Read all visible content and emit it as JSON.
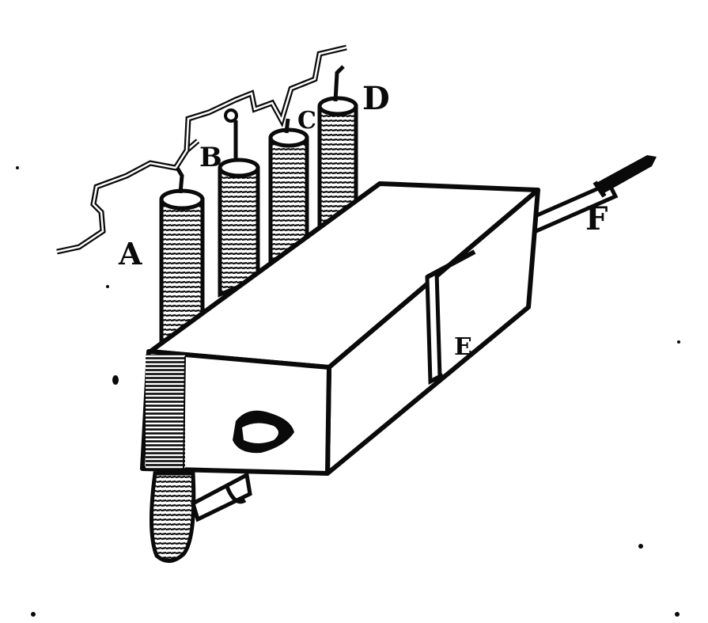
{
  "labels": {
    "a": "A",
    "b": "B",
    "c": "C",
    "d": "D",
    "e": "E",
    "f": "F"
  },
  "colors": {
    "ink": "#0a0a0a",
    "paper": "#ffffff"
  }
}
